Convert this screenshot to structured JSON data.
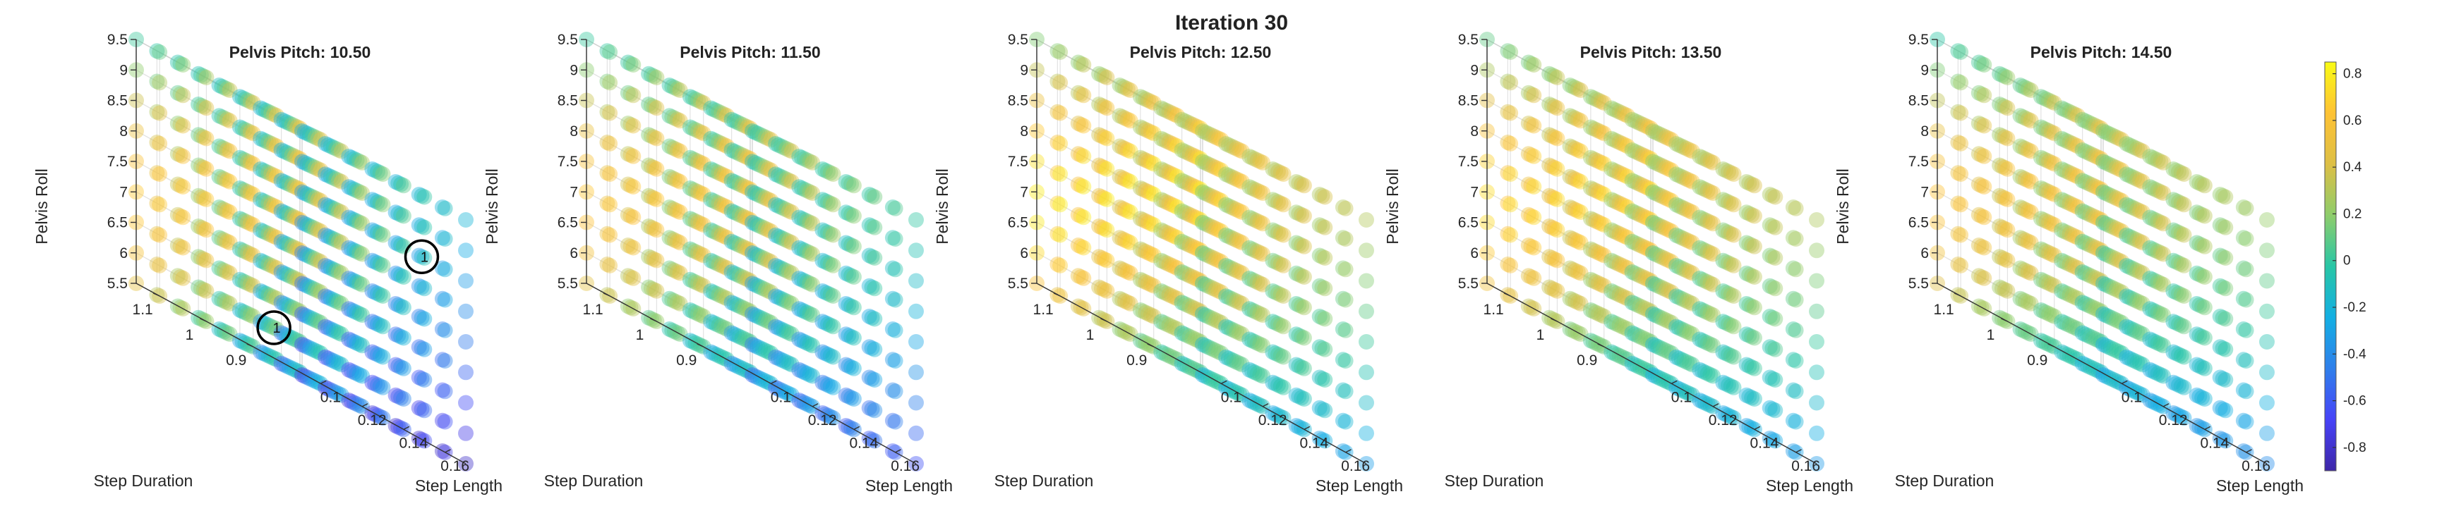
{
  "figure_title": "Iteration 30",
  "colormap": [
    "#3e26a8",
    "#4743f8",
    "#2f7feb",
    "#13afe3",
    "#28c6a6",
    "#8ecd6b",
    "#ddbf45",
    "#fec234",
    "#f9fb15"
  ],
  "chart_data": [
    {
      "type": "scatter3d",
      "title": "Pelvis Pitch: 10.50",
      "xlabel": "Step Length",
      "ylabel": "Step Duration",
      "zlabel": "Pelvis Roll",
      "x_ticks": [
        "0.1",
        "0.12",
        "0.14",
        "0.16"
      ],
      "y_ticks": [
        "0.9",
        "1",
        "1.1"
      ],
      "z_ticks": [
        "5.5",
        "6",
        "6.5",
        "7",
        "7.5",
        "8",
        "8.5",
        "9",
        "9.5"
      ],
      "grid": {
        "step_length": [
          0.09,
          0.17,
          9
        ],
        "step_duration": [
          0.8,
          1.15,
          8
        ],
        "pelvis_roll": [
          5.5,
          9.5,
          9
        ]
      },
      "value_model": {
        "base": 0.0,
        "bias": -0.35
      },
      "clim": [
        -0.9,
        0.85
      ],
      "annotations": [
        {
          "text": "1",
          "step_length": 0.16,
          "step_duration": 0.85,
          "pelvis_roll": 8.5
        },
        {
          "text": "1",
          "step_length": 0.1,
          "step_duration": 0.9,
          "pelvis_roll": 6.0
        }
      ]
    },
    {
      "type": "scatter3d",
      "title": "Pelvis Pitch: 11.50",
      "xlabel": "Step Length",
      "ylabel": "Step Duration",
      "zlabel": "Pelvis Roll",
      "x_ticks": [
        "0.1",
        "0.12",
        "0.14",
        "0.16"
      ],
      "y_ticks": [
        "0.9",
        "1",
        "1.1"
      ],
      "z_ticks": [
        "5.5",
        "6",
        "6.5",
        "7",
        "7.5",
        "8",
        "8.5",
        "9",
        "9.5"
      ],
      "grid": {
        "step_length": [
          0.09,
          0.17,
          9
        ],
        "step_duration": [
          0.8,
          1.15,
          8
        ],
        "pelvis_roll": [
          5.5,
          9.5,
          9
        ]
      },
      "value_model": {
        "base": 0.05,
        "bias": -0.15
      },
      "clim": [
        -0.9,
        0.85
      ],
      "annotations": []
    },
    {
      "type": "scatter3d",
      "title": "Pelvis Pitch: 12.50",
      "xlabel": "Step Length",
      "ylabel": "Step Duration",
      "zlabel": "Pelvis Roll",
      "x_ticks": [
        "0.1",
        "0.12",
        "0.14",
        "0.16"
      ],
      "y_ticks": [
        "0.9",
        "1",
        "1.1"
      ],
      "z_ticks": [
        "5.5",
        "6",
        "6.5",
        "7",
        "7.5",
        "8",
        "8.5",
        "9",
        "9.5"
      ],
      "grid": {
        "step_length": [
          0.09,
          0.17,
          9
        ],
        "step_duration": [
          0.8,
          1.15,
          8
        ],
        "pelvis_roll": [
          5.5,
          9.5,
          9
        ]
      },
      "value_model": {
        "base": 0.25,
        "bias": 0.0
      },
      "clim": [
        -0.9,
        0.85
      ],
      "annotations": []
    },
    {
      "type": "scatter3d",
      "title": "Pelvis Pitch: 13.50",
      "xlabel": "Step Length",
      "ylabel": "Step Duration",
      "zlabel": "Pelvis Roll",
      "x_ticks": [
        "0.1",
        "0.12",
        "0.14",
        "0.16"
      ],
      "y_ticks": [
        "0.9",
        "1",
        "1.1"
      ],
      "z_ticks": [
        "5.5",
        "6",
        "6.5",
        "7",
        "7.5",
        "8",
        "8.5",
        "9",
        "9.5"
      ],
      "grid": {
        "step_length": [
          0.09,
          0.17,
          9
        ],
        "step_duration": [
          0.8,
          1.15,
          8
        ],
        "pelvis_roll": [
          5.5,
          9.5,
          9
        ]
      },
      "value_model": {
        "base": 0.2,
        "bias": 0.05
      },
      "clim": [
        -0.9,
        0.85
      ],
      "annotations": []
    },
    {
      "type": "scatter3d",
      "title": "Pelvis Pitch: 14.50",
      "xlabel": "Step Length",
      "ylabel": "Step Duration",
      "zlabel": "Pelvis Roll",
      "x_ticks": [
        "0.1",
        "0.12",
        "0.14",
        "0.16"
      ],
      "y_ticks": [
        "0.9",
        "1",
        "1.1"
      ],
      "z_ticks": [
        "5.5",
        "6",
        "6.5",
        "7",
        "7.5",
        "8",
        "8.5",
        "9",
        "9.5"
      ],
      "grid": {
        "step_length": [
          0.09,
          0.17,
          9
        ],
        "step_duration": [
          0.8,
          1.15,
          8
        ],
        "pelvis_roll": [
          5.5,
          9.5,
          9
        ]
      },
      "value_model": {
        "base": 0.1,
        "bias": 0.1
      },
      "clim": [
        -0.9,
        0.85
      ],
      "annotations": []
    }
  ],
  "colorbar": {
    "range": [
      -0.9,
      0.85
    ],
    "ticks": [
      "0.8",
      "0.6",
      "0.4",
      "0.2",
      "0",
      "-0.2",
      "-0.4",
      "-0.6",
      "-0.8"
    ],
    "tick_values": [
      0.8,
      0.6,
      0.4,
      0.2,
      0,
      -0.2,
      -0.4,
      -0.6,
      -0.8
    ]
  }
}
